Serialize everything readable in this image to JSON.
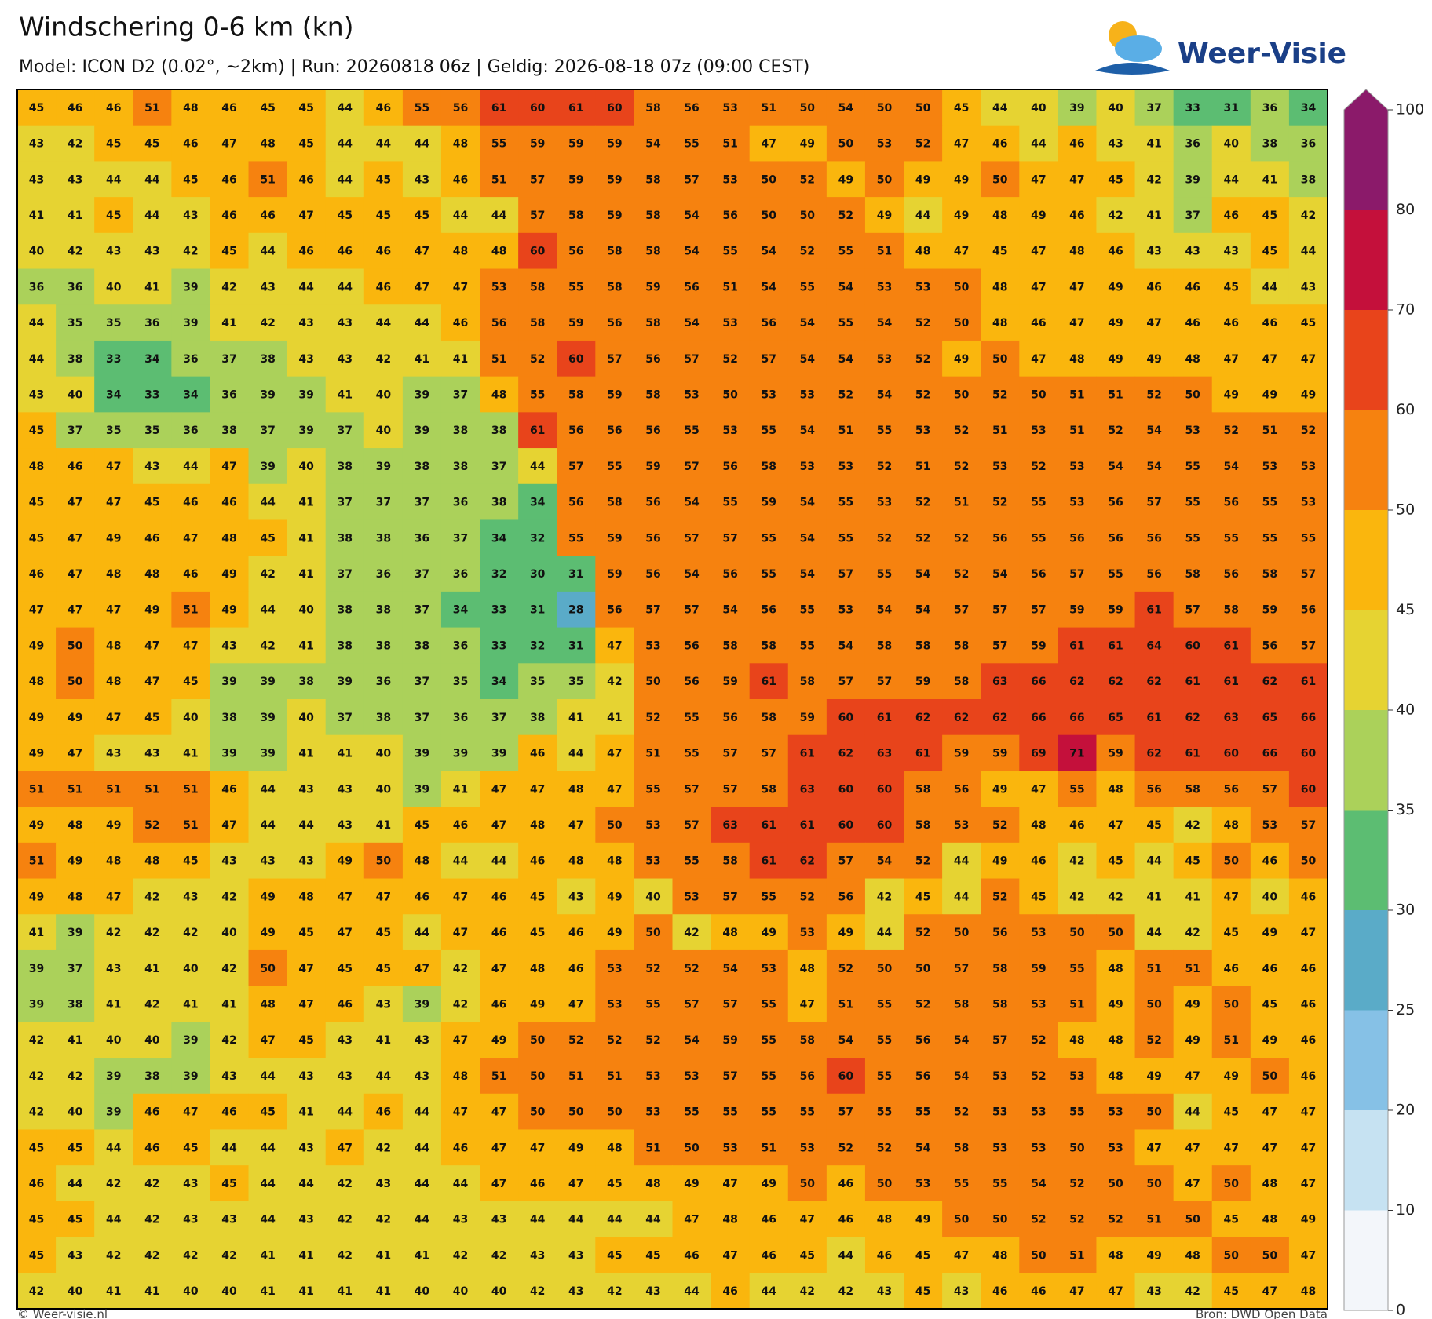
{
  "header": {
    "title": "Windschering 0-6 km (kn)",
    "subtitle": "Model: ICON D2 (0.02°, ~2km)  |  Run: 20260818 06z  |  Geldig: 2026-08-18 07z (09:00 CEST)",
    "logo": "Weer-Visie"
  },
  "footer": {
    "left": "© Weer-visie.nl",
    "right": "Bron: DWD Open Data"
  },
  "colorbar": {
    "ticks": [
      0,
      10,
      20,
      25,
      30,
      35,
      40,
      45,
      50,
      60,
      70,
      80,
      100
    ],
    "colors": [
      "#f3f6fa",
      "#c6e2f2",
      "#86c1e6",
      "#5aabc8",
      "#5cbd72",
      "#abd15a",
      "#e6d332",
      "#fab60d",
      "#f6820f",
      "#e8441b",
      "#c4103b",
      "#8b1a6a"
    ]
  },
  "map": {
    "rows": [
      [
        45,
        46,
        46,
        51,
        48,
        46,
        45,
        45,
        44,
        46,
        55,
        56,
        61,
        60,
        61,
        60,
        58,
        56,
        53,
        51,
        50,
        54,
        50,
        50,
        45,
        44,
        40,
        39,
        40,
        37,
        33,
        31,
        36,
        34
      ],
      [
        43,
        42,
        45,
        45,
        46,
        47,
        48,
        45,
        44,
        44,
        44,
        48,
        55,
        59,
        59,
        59,
        54,
        55,
        51,
        47,
        49,
        50,
        53,
        52,
        47,
        46,
        44,
        46,
        43,
        41,
        36,
        40,
        38,
        36
      ],
      [
        43,
        43,
        44,
        44,
        45,
        46,
        51,
        46,
        44,
        45,
        43,
        46,
        51,
        57,
        59,
        59,
        58,
        57,
        53,
        50,
        52,
        49,
        50,
        49,
        49,
        50,
        47,
        47,
        45,
        42,
        39,
        44,
        41,
        38
      ],
      [
        41,
        41,
        45,
        44,
        43,
        46,
        46,
        47,
        45,
        45,
        45,
        44,
        44,
        57,
        58,
        59,
        58,
        54,
        56,
        50,
        50,
        52,
        49,
        44,
        49,
        48,
        49,
        46,
        42,
        41,
        37,
        46,
        45,
        42
      ],
      [
        40,
        42,
        43,
        43,
        42,
        45,
        44,
        46,
        46,
        46,
        47,
        48,
        48,
        60,
        56,
        58,
        58,
        54,
        55,
        54,
        52,
        55,
        51,
        48,
        47,
        45,
        47,
        48,
        46,
        43,
        43,
        43,
        45,
        44
      ],
      [
        36,
        36,
        40,
        41,
        39,
        42,
        43,
        44,
        44,
        46,
        47,
        47,
        53,
        58,
        55,
        58,
        59,
        56,
        51,
        54,
        55,
        54,
        53,
        53,
        50,
        48,
        47,
        47,
        49,
        46,
        46,
        45,
        44,
        43
      ],
      [
        44,
        35,
        35,
        36,
        39,
        41,
        42,
        43,
        43,
        44,
        44,
        46,
        56,
        58,
        59,
        56,
        58,
        54,
        53,
        56,
        54,
        55,
        54,
        52,
        50,
        48,
        46,
        47,
        49,
        47,
        46,
        46,
        46,
        45
      ],
      [
        44,
        38,
        33,
        34,
        36,
        37,
        38,
        43,
        43,
        42,
        41,
        41,
        51,
        52,
        60,
        57,
        56,
        57,
        52,
        57,
        54,
        54,
        53,
        52,
        49,
        50,
        47,
        48,
        49,
        49,
        48,
        47,
        47,
        47
      ],
      [
        43,
        40,
        34,
        33,
        34,
        36,
        39,
        39,
        41,
        40,
        39,
        37,
        48,
        55,
        58,
        59,
        58,
        53,
        50,
        53,
        53,
        52,
        54,
        52,
        50,
        52,
        50,
        51,
        51,
        52,
        50,
        49,
        49,
        49
      ],
      [
        45,
        37,
        35,
        35,
        36,
        38,
        37,
        39,
        37,
        40,
        39,
        38,
        38,
        61,
        56,
        56,
        56,
        55,
        53,
        55,
        54,
        51,
        55,
        53,
        52,
        51,
        53,
        51,
        52,
        54,
        53,
        52,
        51,
        52
      ],
      [
        48,
        46,
        47,
        43,
        44,
        47,
        39,
        40,
        38,
        39,
        38,
        38,
        37,
        44,
        57,
        55,
        59,
        57,
        56,
        58,
        53,
        53,
        52,
        51,
        52,
        53,
        52,
        53,
        54,
        54,
        55,
        54,
        53,
        53
      ],
      [
        45,
        47,
        47,
        45,
        46,
        46,
        44,
        41,
        37,
        37,
        37,
        36,
        38,
        34,
        56,
        58,
        56,
        54,
        55,
        59,
        54,
        55,
        53,
        52,
        51,
        52,
        55,
        53,
        56,
        57,
        55,
        56,
        55,
        53
      ],
      [
        45,
        47,
        49,
        46,
        47,
        48,
        45,
        41,
        38,
        38,
        36,
        37,
        34,
        32,
        55,
        59,
        56,
        57,
        57,
        55,
        54,
        55,
        52,
        52,
        52,
        56,
        55,
        56,
        56,
        56,
        55,
        55,
        55,
        55
      ],
      [
        46,
        47,
        48,
        48,
        46,
        49,
        42,
        41,
        37,
        36,
        37,
        36,
        32,
        30,
        31,
        59,
        56,
        54,
        56,
        55,
        54,
        57,
        55,
        54,
        52,
        54,
        56,
        57,
        55,
        56,
        58,
        56,
        58,
        57
      ],
      [
        47,
        47,
        47,
        49,
        51,
        49,
        44,
        40,
        38,
        38,
        37,
        34,
        33,
        31,
        28,
        56,
        57,
        57,
        54,
        56,
        55,
        53,
        54,
        54,
        57,
        57,
        57,
        59,
        59,
        61,
        57,
        58,
        59,
        56
      ],
      [
        49,
        50,
        48,
        47,
        47,
        43,
        42,
        41,
        38,
        38,
        38,
        36,
        33,
        32,
        31,
        47,
        53,
        56,
        58,
        58,
        55,
        54,
        58,
        58,
        58,
        57,
        59,
        61,
        61,
        64,
        60,
        61,
        56,
        57
      ],
      [
        48,
        50,
        48,
        47,
        45,
        39,
        39,
        38,
        39,
        36,
        37,
        35,
        34,
        35,
        35,
        42,
        50,
        56,
        59,
        61,
        58,
        57,
        57,
        59,
        58,
        63,
        66,
        62,
        62,
        62,
        61,
        61,
        62,
        61
      ],
      [
        49,
        49,
        47,
        45,
        40,
        38,
        39,
        40,
        37,
        38,
        37,
        36,
        37,
        38,
        41,
        41,
        52,
        55,
        56,
        58,
        59,
        60,
        61,
        62,
        62,
        62,
        66,
        66,
        65,
        61,
        62,
        63,
        65,
        66
      ],
      [
        49,
        47,
        43,
        43,
        41,
        39,
        39,
        41,
        41,
        40,
        39,
        39,
        39,
        46,
        44,
        47,
        51,
        55,
        57,
        57,
        61,
        62,
        63,
        61,
        59,
        59,
        69,
        71,
        59,
        62,
        61,
        60,
        66,
        60
      ],
      [
        51,
        51,
        51,
        51,
        51,
        46,
        44,
        43,
        43,
        40,
        39,
        41,
        47,
        47,
        48,
        47,
        55,
        57,
        57,
        58,
        63,
        60,
        60,
        58,
        56,
        49,
        47,
        55,
        48,
        56,
        58,
        56,
        57,
        60
      ],
      [
        49,
        48,
        49,
        52,
        51,
        47,
        44,
        44,
        43,
        41,
        45,
        46,
        47,
        48,
        47,
        50,
        53,
        57,
        63,
        61,
        61,
        60,
        60,
        58,
        53,
        52,
        48,
        46,
        47,
        45,
        42,
        48,
        53,
        57
      ],
      [
        51,
        49,
        48,
        48,
        45,
        43,
        43,
        43,
        49,
        50,
        48,
        44,
        44,
        46,
        48,
        48,
        53,
        55,
        58,
        61,
        62,
        57,
        54,
        52,
        44,
        49,
        46,
        42,
        45,
        44,
        45,
        50,
        46,
        50
      ],
      [
        49,
        48,
        47,
        42,
        43,
        42,
        49,
        48,
        47,
        47,
        46,
        47,
        46,
        45,
        43,
        49,
        40,
        53,
        57,
        55,
        52,
        56,
        42,
        45,
        44,
        52,
        45,
        42,
        42,
        41,
        41,
        47,
        40,
        46
      ],
      [
        41,
        39,
        42,
        42,
        42,
        40,
        49,
        45,
        47,
        45,
        44,
        47,
        46,
        45,
        46,
        49,
        50,
        42,
        48,
        49,
        53,
        49,
        44,
        52,
        50,
        56,
        53,
        50,
        50,
        44,
        42,
        45,
        49,
        47
      ],
      [
        39,
        37,
        43,
        41,
        40,
        42,
        50,
        47,
        45,
        45,
        47,
        42,
        47,
        48,
        46,
        53,
        52,
        52,
        54,
        53,
        48,
        52,
        50,
        50,
        57,
        58,
        59,
        55,
        48,
        51,
        51,
        46,
        46,
        46
      ],
      [
        39,
        38,
        41,
        42,
        41,
        41,
        48,
        47,
        46,
        43,
        39,
        42,
        46,
        49,
        47,
        53,
        55,
        57,
        57,
        55,
        47,
        51,
        55,
        52,
        58,
        58,
        53,
        51,
        49,
        50,
        49,
        50,
        45,
        46
      ],
      [
        42,
        41,
        40,
        40,
        39,
        42,
        47,
        45,
        43,
        41,
        43,
        47,
        49,
        50,
        52,
        52,
        52,
        54,
        59,
        55,
        58,
        54,
        55,
        56,
        54,
        57,
        52,
        48,
        48,
        52,
        49,
        51,
        49,
        46
      ],
      [
        42,
        42,
        39,
        38,
        39,
        43,
        44,
        43,
        43,
        44,
        43,
        48,
        51,
        50,
        51,
        51,
        53,
        53,
        57,
        55,
        56,
        60,
        55,
        56,
        54,
        53,
        52,
        53,
        48,
        49,
        47,
        49,
        50,
        46
      ],
      [
        42,
        40,
        39,
        46,
        47,
        46,
        45,
        41,
        44,
        46,
        44,
        47,
        47,
        50,
        50,
        50,
        53,
        55,
        55,
        55,
        55,
        57,
        55,
        55,
        52,
        53,
        53,
        55,
        53,
        50,
        44,
        45,
        47,
        47
      ],
      [
        45,
        45,
        44,
        46,
        45,
        44,
        44,
        43,
        47,
        42,
        44,
        46,
        47,
        47,
        49,
        48,
        51,
        50,
        53,
        51,
        53,
        52,
        52,
        54,
        58,
        53,
        53,
        50,
        53,
        47,
        47,
        47,
        47,
        47
      ],
      [
        46,
        44,
        42,
        42,
        43,
        45,
        44,
        44,
        42,
        43,
        44,
        44,
        47,
        46,
        47,
        45,
        48,
        49,
        47,
        49,
        50,
        46,
        50,
        53,
        55,
        55,
        54,
        52,
        50,
        50,
        47,
        50,
        48,
        47
      ],
      [
        45,
        45,
        44,
        42,
        43,
        43,
        44,
        43,
        42,
        42,
        44,
        43,
        43,
        44,
        44,
        44,
        44,
        47,
        48,
        46,
        47,
        46,
        48,
        49,
        50,
        50,
        52,
        52,
        52,
        51,
        50,
        45,
        48,
        49
      ],
      [
        45,
        43,
        42,
        42,
        42,
        42,
        41,
        41,
        42,
        41,
        41,
        42,
        42,
        43,
        43,
        45,
        45,
        46,
        47,
        46,
        45,
        44,
        46,
        45,
        47,
        48,
        50,
        51,
        48,
        49,
        48,
        50,
        50,
        47
      ],
      [
        42,
        40,
        41,
        41,
        40,
        40,
        41,
        41,
        41,
        41,
        40,
        40,
        40,
        42,
        43,
        42,
        43,
        44,
        46,
        44,
        42,
        42,
        43,
        45,
        43,
        46,
        46,
        47,
        47,
        43,
        42,
        45,
        47,
        48
      ]
    ]
  }
}
